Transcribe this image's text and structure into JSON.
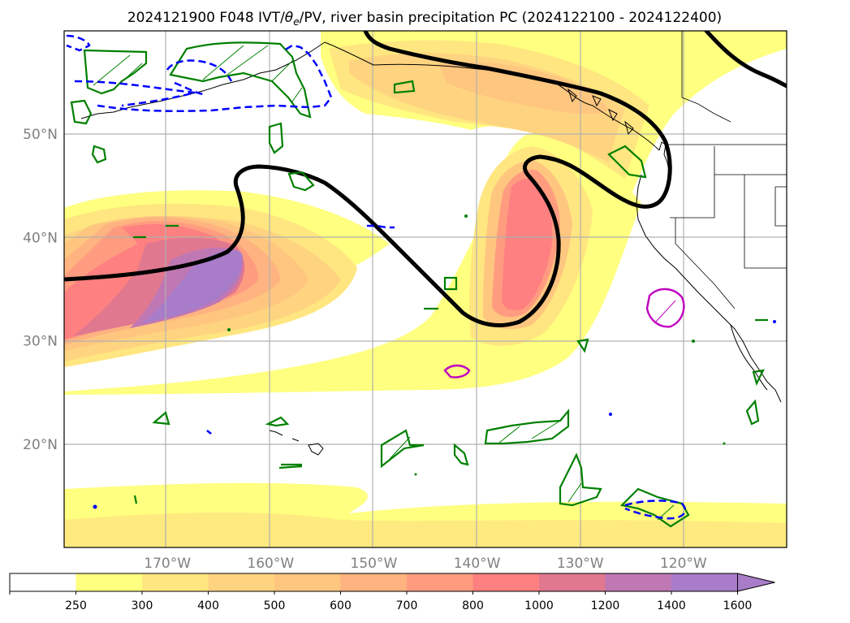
{
  "map": {
    "title": "2024121900 F048 IVT/θe/PV, river basin precipitation PC (2024122100 - 2024122400)",
    "title_parts": {
      "prefix": "2024121900 F048 IVT/",
      "theta": "θ",
      "sub": "e",
      "suffix": "/PV, river basin precipitation PC (2024122100 - 2024122400)"
    },
    "lat_ticks": [
      {
        "value": 50,
        "label": "50°N"
      },
      {
        "value": 40,
        "label": "40°N"
      },
      {
        "value": 30,
        "label": "30°N"
      },
      {
        "value": 20,
        "label": "20°N"
      }
    ],
    "lon_ticks": [
      {
        "value": -170,
        "label": "170°W"
      },
      {
        "value": -160,
        "label": "160°W"
      },
      {
        "value": -150,
        "label": "150°W"
      },
      {
        "value": -140,
        "label": "140°W"
      },
      {
        "value": -130,
        "label": "130°W"
      },
      {
        "value": -120,
        "label": "120°W"
      }
    ],
    "extent": {
      "lon_min": -180,
      "lon_max": -110,
      "lat_min": 10,
      "lat_max": 60
    },
    "colors": {
      "pv_contour": "#000000",
      "precip_green": "#008000",
      "precip_blue": "#0000ff",
      "precip_magenta": "#c000c0",
      "coastline": "#000000"
    }
  },
  "colorbar": {
    "levels": [
      "250",
      "300",
      "400",
      "500",
      "600",
      "700",
      "800",
      "1000",
      "1200",
      "1400",
      "1600"
    ],
    "colors": [
      "#ffffff",
      "#ffff80",
      "#ffe680",
      "#ffd480",
      "#ffc680",
      "#ffb380",
      "#ff9c80",
      "#ff8080",
      "#e07890",
      "#c078b4",
      "#a87cc8"
    ],
    "extend": "max"
  }
}
